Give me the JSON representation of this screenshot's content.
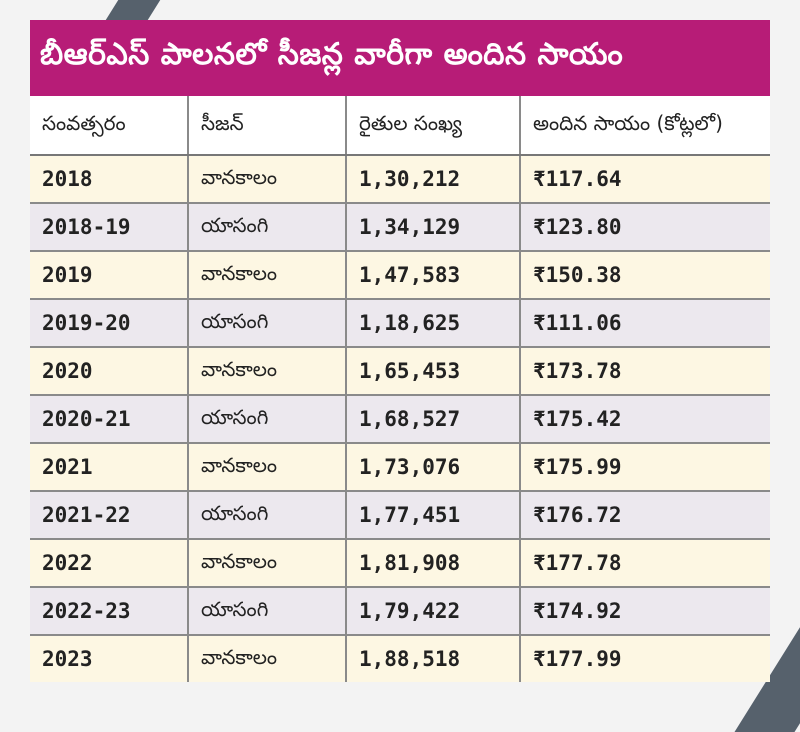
{
  "title": "బీఆర్ఎస్ పాలనలో సీజన్ల వారీగా అందిన సాయం",
  "headers": [
    "సంవత్సరం",
    "సీజన్",
    "రైతుల సంఖ్య",
    "అందిన సాయం (కోట్లలో)"
  ],
  "rows": [
    {
      "year": "2018",
      "season": "వానకాలం",
      "farmers": "1,30,212",
      "amount": "₹117.64"
    },
    {
      "year": "2018-19",
      "season": "యాసంగి",
      "farmers": "1,34,129",
      "amount": "₹123.80"
    },
    {
      "year": "2019",
      "season": "వానకాలం",
      "farmers": "1,47,583",
      "amount": "₹150.38"
    },
    {
      "year": "2019-20",
      "season": "యాసంగి",
      "farmers": "1,18,625",
      "amount": "₹111.06"
    },
    {
      "year": "2020",
      "season": "వానకాలం",
      "farmers": "1,65,453",
      "amount": "₹173.78"
    },
    {
      "year": "2020-21",
      "season": "యాసంగి",
      "farmers": "1,68,527",
      "amount": "₹175.42"
    },
    {
      "year": "2021",
      "season": "వానకాలం",
      "farmers": "1,73,076",
      "amount": "₹175.99"
    },
    {
      "year": "2021-22",
      "season": "యాసంగి",
      "farmers": "1,77,451",
      "amount": "₹176.72"
    },
    {
      "year": "2022",
      "season": "వానకాలం",
      "farmers": "1,81,908",
      "amount": "₹177.78"
    },
    {
      "year": "2022-23",
      "season": "యాసంగి",
      "farmers": "1,79,422",
      "amount": "₹174.92"
    },
    {
      "year": "2023",
      "season": "వానకాలం",
      "farmers": "1,88,518",
      "amount": "₹177.99"
    }
  ],
  "colors": {
    "banner": "#b71c77",
    "row_odd": "#fdf7e3",
    "row_even": "#ece8ee",
    "stripe": "#56616c"
  }
}
